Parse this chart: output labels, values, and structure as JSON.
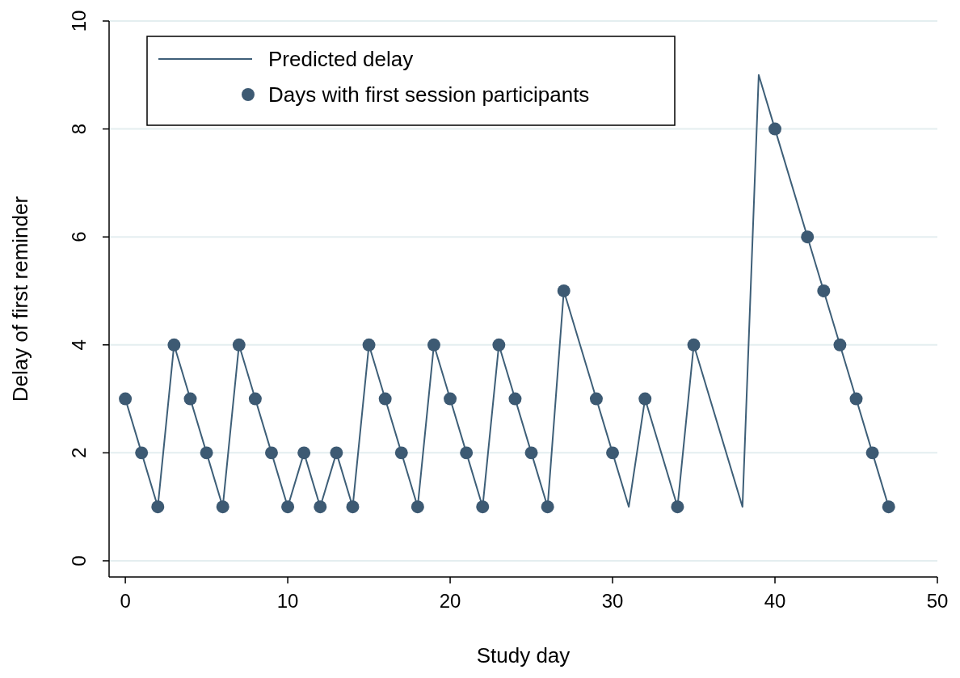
{
  "chart_data": {
    "type": "line",
    "xlabel": "Study day",
    "ylabel": "Delay of first reminder",
    "xlim": [
      -1,
      50
    ],
    "ylim": [
      -0.3,
      10
    ],
    "xticks": [
      0,
      10,
      20,
      30,
      40,
      50
    ],
    "yticks": [
      0,
      2,
      4,
      6,
      8,
      10
    ],
    "grid": "y",
    "legend": "top left",
    "series": [
      {
        "name": "Predicted delay",
        "type": "line",
        "color": "#3e5f78",
        "marker": "none",
        "line_style": "solid",
        "x": [
          0,
          1,
          2,
          3,
          4,
          5,
          6,
          7,
          8,
          9,
          10,
          11,
          12,
          13,
          14,
          15,
          16,
          17,
          18,
          19,
          20,
          21,
          22,
          23,
          24,
          25,
          26,
          27,
          29,
          30,
          31,
          32,
          34,
          35,
          38,
          39,
          40,
          42,
          43,
          44,
          45,
          46,
          47
        ],
        "values": [
          3,
          2,
          1,
          4,
          3,
          2,
          1,
          4,
          3,
          2,
          1,
          2,
          1,
          2,
          1,
          4,
          3,
          2,
          1,
          4,
          3,
          2,
          1,
          4,
          3,
          2,
          1,
          5,
          3,
          2,
          1,
          3,
          1,
          4,
          1,
          9,
          8,
          6,
          5,
          4,
          3,
          2,
          1
        ]
      },
      {
        "name": "Days with first session participants",
        "type": "scatter",
        "color": "#3d5a73",
        "marker": "circle",
        "x": [
          0,
          1,
          2,
          3,
          4,
          5,
          6,
          7,
          8,
          9,
          10,
          11,
          12,
          13,
          14,
          15,
          16,
          17,
          18,
          19,
          20,
          21,
          22,
          23,
          24,
          25,
          26,
          27,
          29,
          30,
          32,
          34,
          35,
          40,
          42,
          43,
          44,
          45,
          46,
          47
        ],
        "values": [
          3,
          2,
          1,
          4,
          3,
          2,
          1,
          4,
          3,
          2,
          1,
          2,
          1,
          2,
          1,
          4,
          3,
          2,
          1,
          4,
          3,
          2,
          1,
          4,
          3,
          2,
          1,
          5,
          3,
          2,
          3,
          1,
          4,
          8,
          6,
          5,
          4,
          3,
          2,
          1
        ]
      }
    ]
  }
}
